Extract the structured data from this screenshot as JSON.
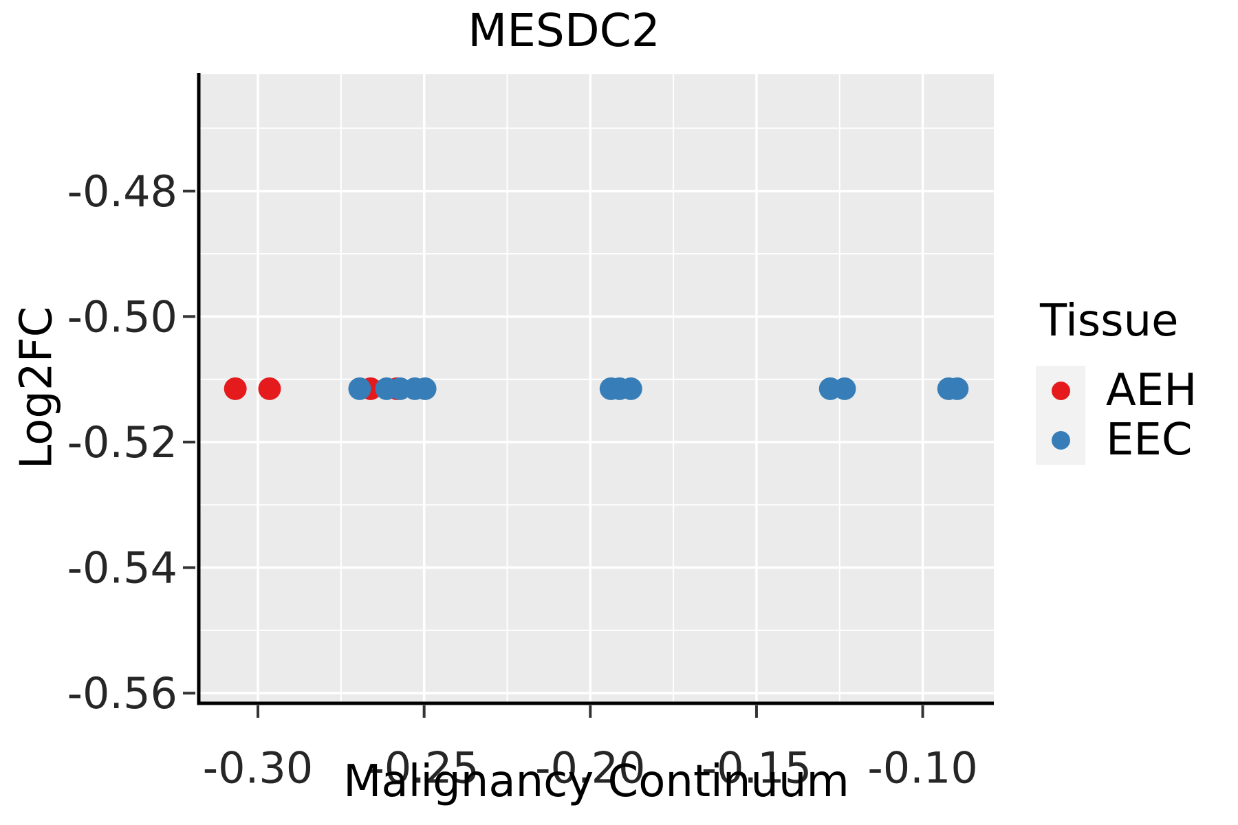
{
  "chart_data": {
    "type": "scatter",
    "title": "MESDC2",
    "xlabel": "Malignancy Continuum",
    "ylabel": "Log2FC",
    "xlim": [
      -0.3178,
      -0.0786
    ],
    "ylim": [
      -0.5614,
      -0.4614
    ],
    "x_ticks": [
      {
        "v": -0.3,
        "label": "-0.30"
      },
      {
        "v": -0.25,
        "label": "-0.25"
      },
      {
        "v": -0.2,
        "label": "-0.20"
      },
      {
        "v": -0.15,
        "label": "-0.15"
      },
      {
        "v": -0.1,
        "label": "-0.10"
      }
    ],
    "y_ticks": [
      {
        "v": -0.48,
        "label": "-0.48"
      },
      {
        "v": -0.5,
        "label": "-0.50"
      },
      {
        "v": -0.52,
        "label": "-0.52"
      },
      {
        "v": -0.54,
        "label": "-0.54"
      },
      {
        "v": -0.56,
        "label": "-0.56"
      }
    ],
    "x_minor": [
      -0.275,
      -0.225,
      -0.175,
      -0.125
    ],
    "y_minor": [
      -0.47,
      -0.49,
      -0.51,
      -0.53,
      -0.55
    ],
    "grid": true,
    "legend": {
      "title": "Tissue",
      "position": "right",
      "entries": [
        {
          "label": "AEH",
          "color": "#E41A1C"
        },
        {
          "label": "EEC",
          "color": "#377EB8"
        }
      ]
    },
    "series": [
      {
        "name": "AEH",
        "color": "#E41A1C",
        "points": [
          {
            "x": -0.3068,
            "y": -0.5115
          },
          {
            "x": -0.2965,
            "y": -0.5115
          },
          {
            "x": -0.2661,
            "y": -0.5115
          },
          {
            "x": -0.2582,
            "y": -0.5115
          }
        ]
      },
      {
        "name": "EEC",
        "color": "#377EB8",
        "points": [
          {
            "x": -0.2694,
            "y": -0.5115
          },
          {
            "x": -0.2613,
            "y": -0.5115
          },
          {
            "x": -0.2572,
            "y": -0.5115
          },
          {
            "x": -0.2528,
            "y": -0.5115
          },
          {
            "x": -0.2497,
            "y": -0.5115
          },
          {
            "x": -0.1938,
            "y": -0.5115
          },
          {
            "x": -0.1912,
            "y": -0.5115
          },
          {
            "x": -0.1878,
            "y": -0.5115
          },
          {
            "x": -0.1278,
            "y": -0.5115
          },
          {
            "x": -0.1235,
            "y": -0.5115
          },
          {
            "x": -0.0922,
            "y": -0.5115
          },
          {
            "x": -0.0896,
            "y": -0.5115
          }
        ]
      }
    ],
    "styles": {
      "panel_bg": "#EBEBEB",
      "grid_color": "#FFFFFF",
      "axis_line_color": "#000000",
      "tick_color": "#333333",
      "tick_label_color": "#262626",
      "legend_key_bg": "#F2F2F2",
      "point_radius": 16.5
    }
  }
}
